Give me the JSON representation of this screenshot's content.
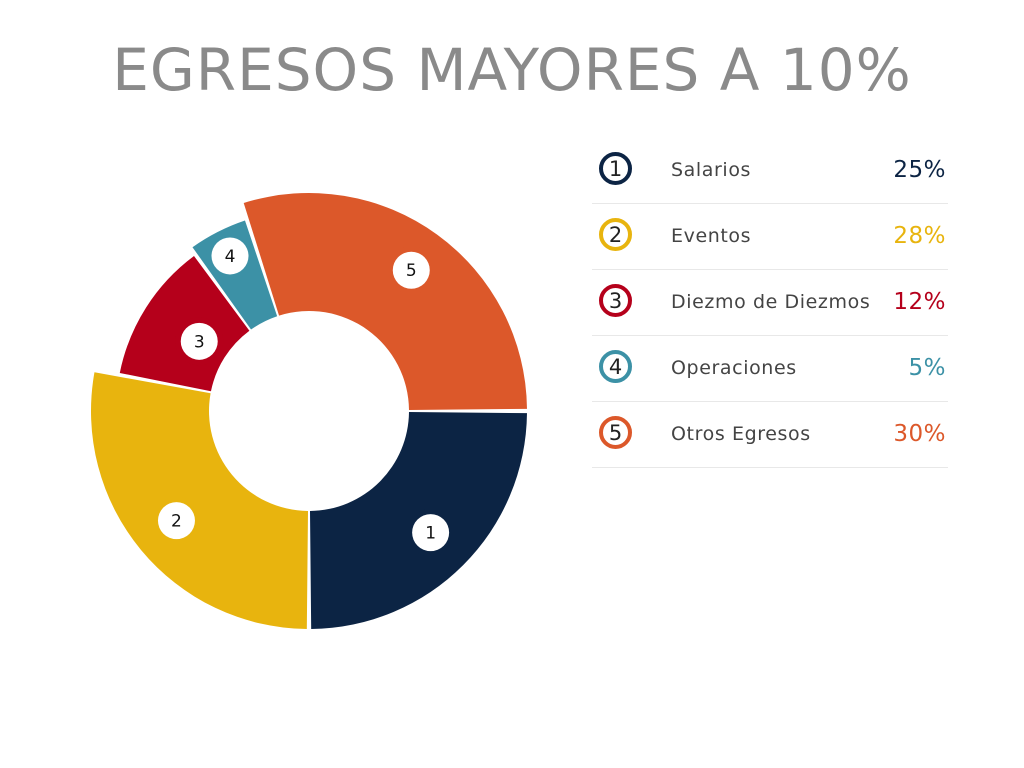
{
  "title": "EGRESOS MAYORES A 10%",
  "chart_data": {
    "type": "pie",
    "categories": [
      "Salarios",
      "Eventos",
      "Diezmo de Diezmos",
      "Operaciones",
      "Otros Egresos"
    ],
    "markers": [
      "1",
      "2",
      "3",
      "4",
      "5"
    ],
    "values": [
      25,
      28,
      12,
      5,
      30
    ],
    "value_labels": [
      "25%",
      "28%",
      "12%",
      "5%",
      "30%"
    ],
    "colors": [
      "#0c2444",
      "#e8b40e",
      "#b5001b",
      "#3c91a6",
      "#dc582a"
    ],
    "legend_position": "right"
  }
}
